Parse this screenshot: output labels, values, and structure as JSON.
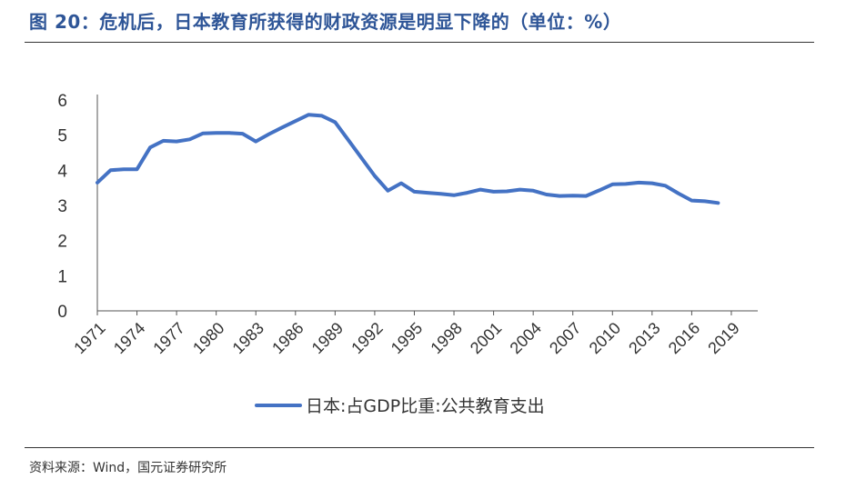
{
  "title": "图 20：危机后，日本教育所获得的财政资源是明显下降的（单位：%）",
  "source": "资料来源：Wind，国元证券研究所",
  "chart_data": {
    "type": "line",
    "title": "图 20：危机后，日本教育所获得的财政资源是明显下降的（单位：%）",
    "xlabel": "",
    "ylabel": "",
    "ylim": [
      0,
      6
    ],
    "yticks": [
      "0",
      "1",
      "2",
      "3",
      "4",
      "5",
      "6"
    ],
    "xticks": [
      "1971",
      "1974",
      "1977",
      "1980",
      "1983",
      "1986",
      "1989",
      "1992",
      "1995",
      "1998",
      "2001",
      "2004",
      "2007",
      "2010",
      "2013",
      "2016",
      "2019"
    ],
    "xlim": [
      1971,
      2021
    ],
    "grid": false,
    "legend_position": "bottom",
    "color": "#4472c4",
    "series": [
      {
        "name": "日本:占GDP比重:公共教育支出",
        "x": [
          1971,
          1972,
          1973,
          1974,
          1975,
          1976,
          1977,
          1978,
          1979,
          1980,
          1981,
          1982,
          1983,
          1984,
          1985,
          1986,
          1987,
          1988,
          1989,
          1990,
          1991,
          1992,
          1993,
          1994,
          1995,
          1996,
          1997,
          1998,
          1999,
          2000,
          2001,
          2002,
          2003,
          2004,
          2005,
          2006,
          2007,
          2008,
          2009,
          2010,
          2011,
          2012,
          2013,
          2014,
          2015,
          2016,
          2017,
          2018
        ],
        "y": [
          3.65,
          4.0,
          4.03,
          4.03,
          4.65,
          4.84,
          4.82,
          4.88,
          5.05,
          5.06,
          5.06,
          5.04,
          4.82,
          5.03,
          5.22,
          5.4,
          5.58,
          5.55,
          5.37,
          4.86,
          4.35,
          3.84,
          3.42,
          3.63,
          3.39,
          3.36,
          3.33,
          3.29,
          3.36,
          3.45,
          3.39,
          3.4,
          3.45,
          3.42,
          3.31,
          3.27,
          3.28,
          3.27,
          3.43,
          3.6,
          3.61,
          3.65,
          3.63,
          3.56,
          3.34,
          3.14,
          3.12,
          3.07
        ]
      }
    ]
  }
}
